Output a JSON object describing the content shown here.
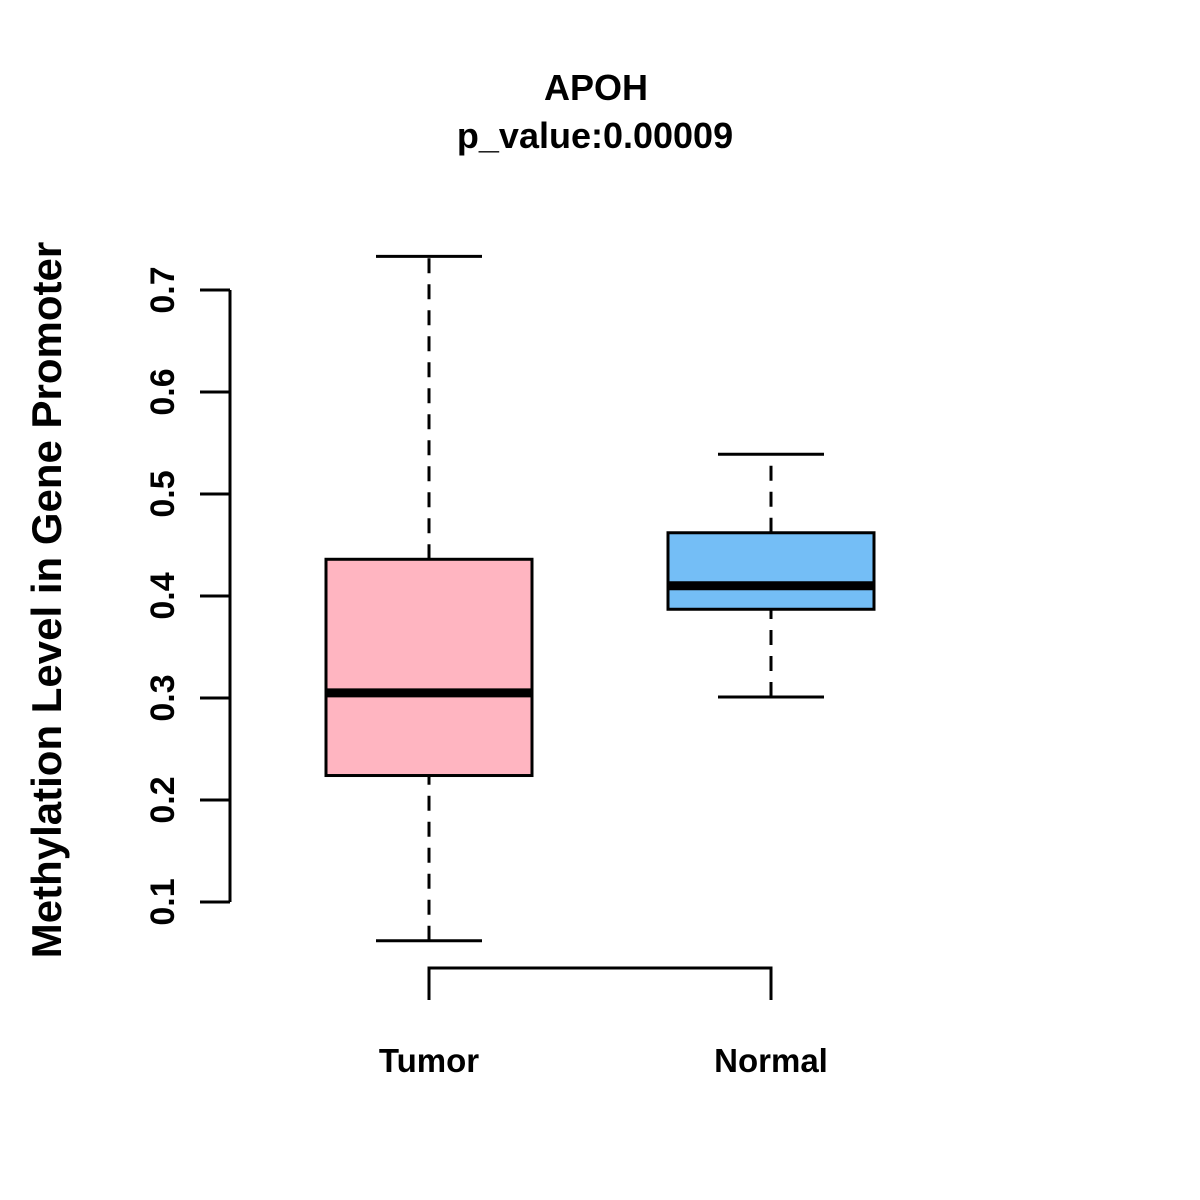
{
  "chart_data": {
    "type": "boxplot",
    "title": "APOH",
    "subtitle": "p_value:0.00009",
    "ylabel": "Methylation Level in Gene Promoter",
    "xlabel": "",
    "ylim": [
      0.1,
      0.7
    ],
    "yticks": [
      0.1,
      0.2,
      0.3,
      0.4,
      0.5,
      0.6,
      0.7
    ],
    "ytick_labels": [
      "0.1",
      "0.2",
      "0.3",
      "0.4",
      "0.5",
      "0.6",
      "0.7"
    ],
    "grid": false,
    "legend": "none",
    "categories": [
      "Tumor",
      "Normal"
    ],
    "series": [
      {
        "name": "Tumor",
        "fill_color": "#FFB5C1",
        "whisker_low": 0.062,
        "q1": 0.224,
        "median": 0.305,
        "q3": 0.436,
        "whisker_high": 0.733
      },
      {
        "name": "Normal",
        "fill_color": "#74BEF6",
        "whisker_low": 0.301,
        "q1": 0.387,
        "median": 0.41,
        "q3": 0.462,
        "whisker_high": 0.539
      }
    ],
    "stroke_color": "#000000",
    "background_color": "#FFFFFF"
  }
}
